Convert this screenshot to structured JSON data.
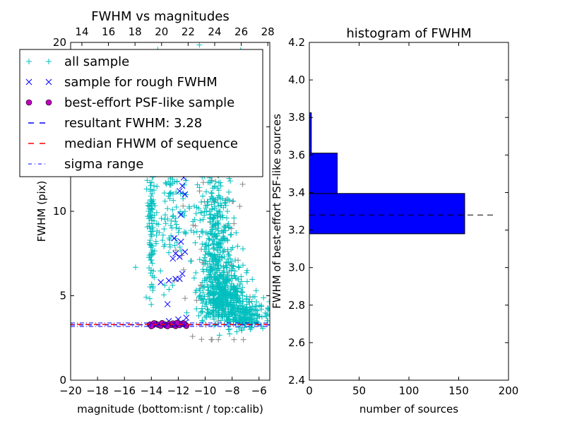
{
  "chart_data": [
    {
      "type": "scatter",
      "title": "FWHM vs magnitudes",
      "xlabel": "magnitude (bottom:isnt / top:calib)",
      "ylabel": "FWHM (pix)",
      "xlim": [
        -20,
        -5.2
      ],
      "ylim": [
        0,
        20
      ],
      "top_xlim": [
        13.15,
        28.15
      ],
      "xticks": [
        -20,
        -18,
        -16,
        -14,
        -12,
        -10,
        -8,
        -6
      ],
      "xtick_labels": [
        "−20",
        "−18",
        "−16",
        "−14",
        "−12",
        "−10",
        "−8",
        "−6"
      ],
      "top_xticks": [
        14,
        16,
        18,
        20,
        22,
        24,
        26,
        28
      ],
      "top_xtick_labels": [
        "14",
        "16",
        "18",
        "20",
        "22",
        "24",
        "26",
        "28"
      ],
      "yticks": [
        0,
        5,
        10,
        15,
        20
      ],
      "ytick_labels": [
        "0",
        "5",
        "10",
        "15",
        "20"
      ],
      "legend_placement": "top-left",
      "legend": [
        {
          "label": "all sample",
          "marker": "plus",
          "color": "#00bfbf"
        },
        {
          "label": "sample for rough FWHM",
          "marker": "x",
          "color": "#0000ff"
        },
        {
          "label": "best-effort PSF-like sample",
          "marker": "circle",
          "color": "#bf00bf"
        },
        {
          "label": "resultant FWHM: 3.28",
          "marker": "dashed",
          "color": "#0000ff"
        },
        {
          "label": "median FHWM of sequence",
          "marker": "dashed",
          "color": "#ff0000"
        },
        {
          "label": "sigma range",
          "marker": "dashdot",
          "color": "#0000ff"
        }
      ],
      "all_sample_clusters": [
        {
          "x": -14.0,
          "y": 9.0,
          "sx": 0.15,
          "sy": 4.0,
          "n": 130
        },
        {
          "x": -12.8,
          "y": 9.0,
          "sx": 0.7,
          "sy": 3.0,
          "n": 90
        },
        {
          "x": -8.8,
          "y": 4.6,
          "sx": 0.9,
          "sy": 1.2,
          "n": 500
        },
        {
          "x": -9.2,
          "y": 8.0,
          "sx": 0.6,
          "sy": 2.5,
          "n": 260
        },
        {
          "x": -9.0,
          "y": 14.5,
          "sx": 0.9,
          "sy": 3.0,
          "n": 140
        },
        {
          "x": -7.0,
          "y": 3.6,
          "sx": 0.8,
          "sy": 0.6,
          "n": 200
        },
        {
          "x": -11.0,
          "y": 11.0,
          "sx": 1.2,
          "sy": 4.0,
          "n": 80
        }
      ],
      "gray_sample_clusters": [
        {
          "x": -9.0,
          "y": 8.0,
          "sx": 1.6,
          "sy": 4.0,
          "n": 60
        }
      ],
      "rough_sample": [
        [
          -11.8,
          13.0
        ],
        [
          -11.6,
          12.0
        ],
        [
          -11.7,
          11.5
        ],
        [
          -11.5,
          11.0
        ],
        [
          -11.9,
          11.2
        ],
        [
          -11.8,
          9.8
        ],
        [
          -11.8,
          8.2
        ],
        [
          -12.3,
          8.4
        ],
        [
          -11.5,
          7.6
        ],
        [
          -12.4,
          7.2
        ],
        [
          -12.2,
          7.5
        ],
        [
          -11.9,
          7.3
        ],
        [
          -11.7,
          6.3
        ],
        [
          -12.2,
          6.0
        ],
        [
          -11.9,
          6.0
        ],
        [
          -13.3,
          5.8
        ],
        [
          -12.7,
          5.9
        ],
        [
          -12.8,
          4.5
        ],
        [
          -12.0,
          3.6
        ],
        [
          -11.4,
          3.7
        ],
        [
          -12.7,
          3.5
        ],
        [
          -11.5,
          3.4
        ]
      ],
      "psf_like_sample": [
        [
          -14.1,
          3.3
        ],
        [
          -13.9,
          3.25
        ],
        [
          -13.7,
          3.35
        ],
        [
          -13.5,
          3.28
        ],
        [
          -13.3,
          3.22
        ],
        [
          -13.2,
          3.38
        ],
        [
          -13.0,
          3.3
        ],
        [
          -12.9,
          3.24
        ],
        [
          -12.7,
          3.33
        ],
        [
          -12.5,
          3.27
        ],
        [
          -12.4,
          3.36
        ],
        [
          -12.2,
          3.21
        ],
        [
          -12.0,
          3.31
        ],
        [
          -11.9,
          3.26
        ],
        [
          -11.7,
          3.34
        ],
        [
          -11.5,
          3.29
        ],
        [
          -11.4,
          3.22
        ],
        [
          -13.8,
          3.37
        ],
        [
          -12.8,
          3.2
        ],
        [
          -12.1,
          3.39
        ],
        [
          -14.0,
          3.2
        ],
        [
          -11.6,
          3.36
        ]
      ],
      "resultant_fwhm": 3.28,
      "median_fwhm": 3.3,
      "sigma_range": [
        3.18,
        3.39
      ]
    },
    {
      "type": "bar",
      "orientation": "horizontal",
      "title": "histogram of FWHM",
      "xlabel": "number of sources",
      "ylabel": "FWHM of best-effort PSF-like sources",
      "xlim": [
        0,
        200
      ],
      "ylim": [
        2.4,
        4.2
      ],
      "xticks": [
        0,
        50,
        100,
        150,
        200
      ],
      "xtick_labels": [
        "0",
        "50",
        "100",
        "150",
        "200"
      ],
      "yticks": [
        2.4,
        2.6,
        2.8,
        3.0,
        3.2,
        3.4,
        3.6,
        3.8,
        4.0,
        4.2
      ],
      "ytick_labels": [
        "2.4",
        "2.6",
        "2.8",
        "3.0",
        "3.2",
        "3.4",
        "3.6",
        "3.8",
        "4.0",
        "4.2"
      ],
      "bins": [
        [
          3.18,
          3.395
        ],
        [
          3.395,
          3.61
        ],
        [
          3.61,
          3.825
        ]
      ],
      "values": [
        156,
        28,
        2
      ],
      "bar_color": "#0000ff",
      "reference_line": {
        "y": 3.28,
        "x_range": [
          0,
          185
        ],
        "style": "dashed",
        "color": "#000000"
      }
    }
  ]
}
